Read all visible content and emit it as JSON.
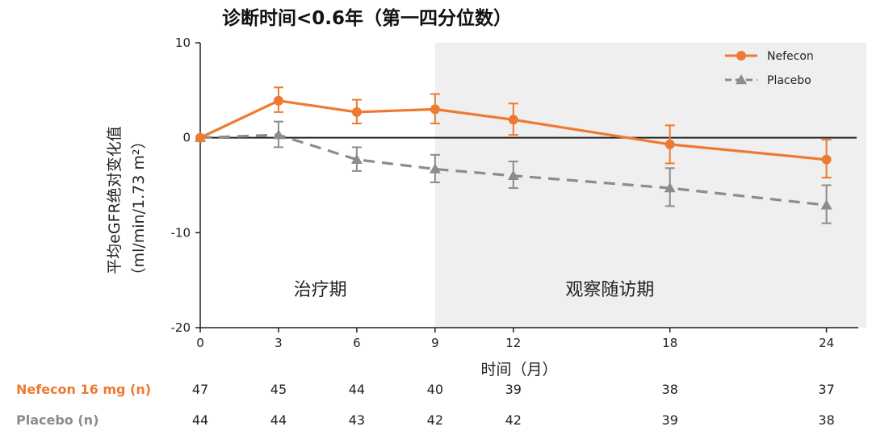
{
  "chart_data": {
    "type": "line",
    "title": "诊断时间<0.6年（第一四分位数）",
    "xlabel": "时间（月）",
    "ylabel": "平均eGFR绝对变化值",
    "ylabel_unit": "（ml/min/1.73 m²）",
    "x": [
      0,
      3,
      6,
      9,
      12,
      18,
      24
    ],
    "x_ticks": [
      "0",
      "3",
      "6",
      "9",
      "12",
      "18",
      "24"
    ],
    "xlim": [
      0,
      24.6
    ],
    "ylim": [
      -20,
      10
    ],
    "y_ticks": [
      "10",
      "0",
      "-10",
      "-20"
    ],
    "y_tick_values": [
      10,
      0,
      -10,
      -20
    ],
    "reference_line_y": 0,
    "shaded_region_x": [
      9,
      24.6
    ],
    "phases": [
      {
        "label": "治疗期",
        "x_center": 4.6
      },
      {
        "label": "观察随访期",
        "x_center": 15.7
      }
    ],
    "legend_position": "top-right",
    "series": [
      {
        "name": "Nefecon",
        "color": "#ee7a32",
        "marker": "circle",
        "dash": false,
        "values": [
          0,
          3.9,
          2.7,
          3.0,
          1.9,
          -0.7,
          -2.3
        ],
        "err_low": [
          0,
          2.7,
          1.5,
          1.5,
          0.3,
          -2.7,
          -4.2
        ],
        "err_high": [
          0,
          5.3,
          4.0,
          4.6,
          3.6,
          1.3,
          -0.2
        ]
      },
      {
        "name": "Placebo",
        "color": "#8c8c8c",
        "marker": "triangle",
        "dash": true,
        "values": [
          0,
          0.3,
          -2.3,
          -3.3,
          -4.0,
          -5.3,
          -7.1
        ],
        "err_low": [
          0,
          -1.0,
          -3.5,
          -4.7,
          -5.3,
          -7.2,
          -9.0
        ],
        "err_high": [
          0,
          1.7,
          -1.0,
          -1.8,
          -2.5,
          -3.2,
          -5.0
        ]
      }
    ],
    "n_table": [
      {
        "label": "Nefecon 16 mg (n)",
        "color": "#ee7a32",
        "values": [
          "47",
          "45",
          "44",
          "40",
          "39",
          "38",
          "37"
        ]
      },
      {
        "label": "Placebo (n)",
        "color": "#8c8c8c",
        "values": [
          "44",
          "44",
          "43",
          "42",
          "42",
          "39",
          "38"
        ]
      }
    ]
  }
}
